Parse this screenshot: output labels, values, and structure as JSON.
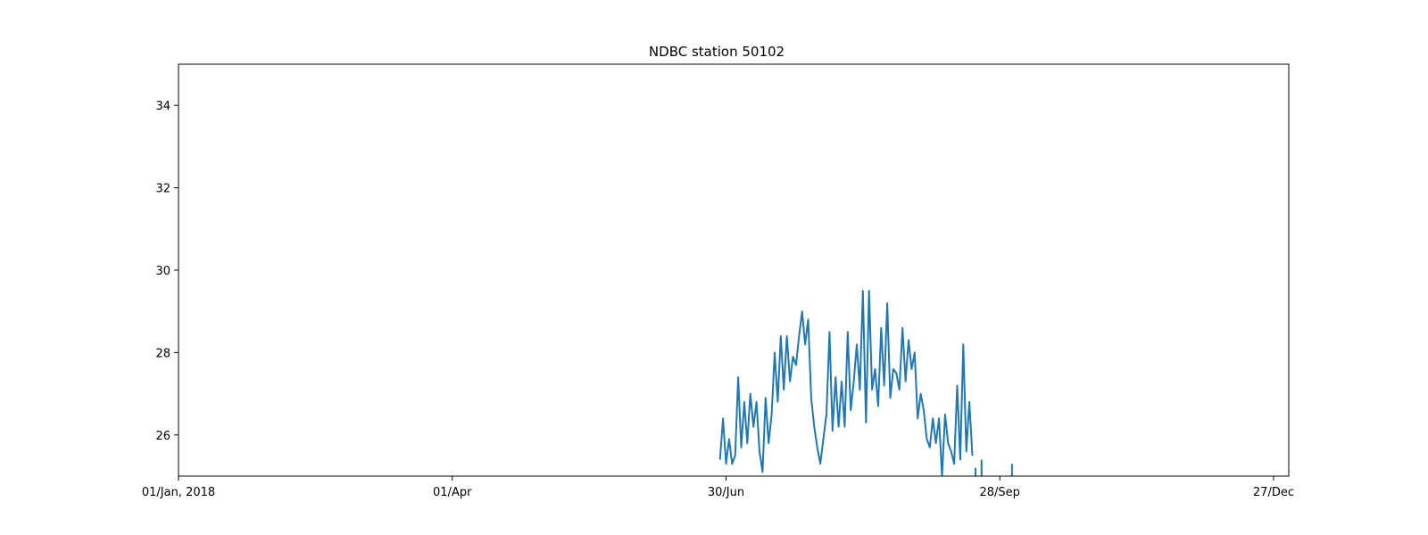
{
  "chart_data": {
    "type": "line",
    "title": "NDBC station 50102",
    "xlabel": "",
    "ylabel": "",
    "x_start_date": "2018-01-01",
    "xlim": [
      "2018-01-01",
      "2019-01-01"
    ],
    "ylim": [
      25.0,
      35.0
    ],
    "x_ticks": [
      {
        "date": "2018-01-01",
        "label": "01/Jan, 2018"
      },
      {
        "date": "2018-04-01",
        "label": "01/Apr"
      },
      {
        "date": "2018-06-30",
        "label": "30/Jun"
      },
      {
        "date": "2018-09-28",
        "label": "28/Sep"
      },
      {
        "date": "2018-12-27",
        "label": "27/Dec"
      }
    ],
    "y_ticks": [
      26,
      28,
      30,
      32,
      34
    ],
    "grid": false,
    "color": "#1f77b4",
    "series": [
      {
        "name": "",
        "x": [
          "2018-06-28",
          "2018-06-29",
          "2018-06-30",
          "2018-07-01",
          "2018-07-02",
          "2018-07-03",
          "2018-07-04",
          "2018-07-05",
          "2018-07-06",
          "2018-07-07",
          "2018-07-08",
          "2018-07-09",
          "2018-07-10",
          "2018-07-11",
          "2018-07-12",
          "2018-07-13",
          "2018-07-14",
          "2018-07-15",
          "2018-07-16",
          "2018-07-17",
          "2018-07-18",
          "2018-07-19",
          "2018-07-20",
          "2018-07-21",
          "2018-07-22",
          "2018-07-23",
          "2018-07-24",
          "2018-07-25",
          "2018-07-26",
          "2018-07-27",
          "2018-07-28",
          "2018-07-29",
          "2018-07-30",
          "2018-07-31",
          "2018-08-01",
          "2018-08-02",
          "2018-08-03",
          "2018-08-04",
          "2018-08-05",
          "2018-08-06",
          "2018-08-07",
          "2018-08-08",
          "2018-08-09",
          "2018-08-10",
          "2018-08-11",
          "2018-08-12",
          "2018-08-13",
          "2018-08-14",
          "2018-08-15",
          "2018-08-16",
          "2018-08-17",
          "2018-08-18",
          "2018-08-19",
          "2018-08-20",
          "2018-08-21",
          "2018-08-22",
          "2018-08-23",
          "2018-08-24",
          "2018-08-25",
          "2018-08-26",
          "2018-08-27",
          "2018-08-28",
          "2018-08-29",
          "2018-08-30",
          "2018-08-31",
          "2018-09-01",
          "2018-09-02",
          "2018-09-03",
          "2018-09-04",
          "2018-09-05",
          "2018-09-06",
          "2018-09-07",
          "2018-09-08",
          "2018-09-09",
          "2018-09-10",
          "2018-09-11",
          "2018-09-12",
          "2018-09-13",
          "2018-09-14",
          "2018-09-15",
          "2018-09-16",
          "2018-09-17",
          "2018-09-18",
          "2018-09-19"
        ],
        "y": [
          25.4,
          26.4,
          25.3,
          25.9,
          25.3,
          25.5,
          27.4,
          25.7,
          26.8,
          25.8,
          27.0,
          26.2,
          26.8,
          25.6,
          25.1,
          26.9,
          25.8,
          26.5,
          28.0,
          26.8,
          28.4,
          27.1,
          28.4,
          27.3,
          27.9,
          27.7,
          28.4,
          29.0,
          28.2,
          28.8,
          26.9,
          26.2,
          25.7,
          25.3,
          25.9,
          26.5,
          28.5,
          26.1,
          27.4,
          26.2,
          27.3,
          26.2,
          28.5,
          26.6,
          27.3,
          28.2,
          27.1,
          29.5,
          26.3,
          29.5,
          27.1,
          27.6,
          26.7,
          28.6,
          27.2,
          29.2,
          26.9,
          27.6,
          27.5,
          27.1,
          28.6,
          27.3,
          28.3,
          27.6,
          28.0,
          26.4,
          27.0,
          26.6,
          25.9,
          25.7,
          26.4,
          25.8,
          26.4,
          25.0,
          26.5,
          25.8,
          25.6,
          25.3,
          27.2,
          25.4,
          28.2,
          25.6,
          26.8,
          25.5
        ],
        "isolated_points": [
          {
            "x": "2018-09-20",
            "y": 25.2
          },
          {
            "x": "2018-09-22",
            "y": 25.4
          },
          {
            "x": "2018-10-02",
            "y": 25.3
          }
        ]
      }
    ]
  }
}
